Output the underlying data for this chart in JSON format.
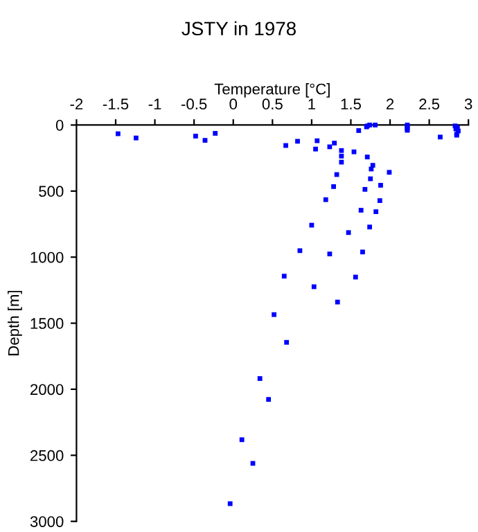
{
  "chart_data": {
    "type": "scatter",
    "title": "JSTY in 1978",
    "xlabel": "Temperature [°C]",
    "ylabel": "Depth [m]",
    "x": [
      -1.47,
      -1.24,
      -0.48,
      -0.36,
      -0.23,
      0.67,
      0.82,
      1.07,
      1.05,
      1.23,
      1.29,
      1.38,
      1.38,
      1.38,
      1.54,
      1.32,
      1.28,
      1.18,
      1.6,
      1.7,
      1.81,
      1.71,
      1.78,
      1.76,
      1.99,
      1.75,
      1.88,
      1.68,
      1.87,
      2.22,
      2.22,
      2.22,
      2.22,
      2.22,
      2.64,
      2.83,
      2.86,
      2.84,
      2.87,
      2.85,
      2.85,
      1.63,
      1.82,
      1.0,
      1.74,
      1.47,
      0.85,
      1.23,
      1.65,
      0.65,
      1.56,
      1.03,
      1.33,
      0.52,
      0.68,
      0.34,
      0.45,
      0.11,
      0.25,
      -0.04,
      1.71,
      1.74
    ],
    "values": [
      66,
      98,
      84,
      116,
      63,
      155,
      123,
      119,
      182,
      165,
      137,
      193,
      235,
      281,
      203,
      375,
      466,
      565,
      42,
      14,
      0,
      242,
      305,
      333,
      358,
      407,
      456,
      487,
      572,
      0,
      10,
      20,
      30,
      40,
      91,
      7,
      20,
      30,
      45,
      70,
      77,
      645,
      656,
      758,
      772,
      814,
      951,
      976,
      961,
      1144,
      1151,
      1224,
      1340,
      1435,
      1645,
      1919,
      2077,
      2382,
      2561,
      2866,
      7,
      0
    ],
    "color": "#0000ff",
    "marker": "square",
    "grid": false,
    "xlim": [
      -2,
      3
    ],
    "xticks": [
      -2,
      -1.5,
      -1,
      -0.5,
      0,
      0.5,
      1,
      1.5,
      2,
      2.5,
      3
    ],
    "ylim": [
      3000,
      0
    ],
    "yticks": [
      0,
      500,
      1000,
      1500,
      2000,
      2500,
      3000
    ]
  }
}
